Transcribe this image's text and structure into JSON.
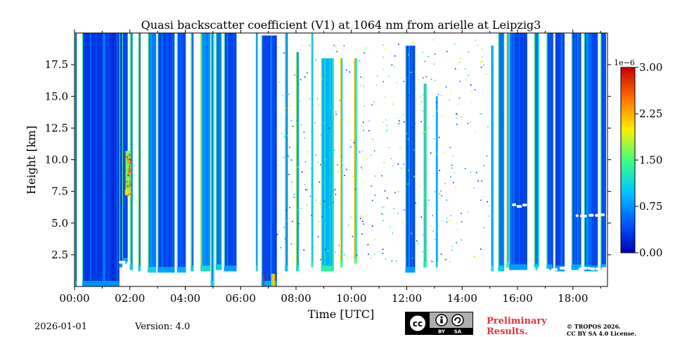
{
  "chart_data": {
    "type": "heatmap",
    "title": "Quasi backscatter coefficient (V1) at 1064 nm from arielle at Leipzig3",
    "xlabel": "Time [UTC]",
    "ylabel": "Height [km]",
    "xlim_hours": [
      0,
      19.25
    ],
    "ylim_km": [
      0,
      20
    ],
    "x_ticks": [
      {
        "value": 0,
        "label": "00:00"
      },
      {
        "value": 2,
        "label": "02:00"
      },
      {
        "value": 4,
        "label": "04:00"
      },
      {
        "value": 6,
        "label": "06:00"
      },
      {
        "value": 8,
        "label": "08:00"
      },
      {
        "value": 10,
        "label": "10:00"
      },
      {
        "value": 12,
        "label": "12:00"
      },
      {
        "value": 14,
        "label": "14:00"
      },
      {
        "value": 16,
        "label": "16:00"
      },
      {
        "value": 18,
        "label": "18:00"
      }
    ],
    "y_ticks": [
      {
        "value": 2.5,
        "label": "2.5"
      },
      {
        "value": 5.0,
        "label": "5.0"
      },
      {
        "value": 7.5,
        "label": "7.5"
      },
      {
        "value": 10.0,
        "label": "10.0"
      },
      {
        "value": 12.5,
        "label": "12.5"
      },
      {
        "value": 15.0,
        "label": "15.0"
      },
      {
        "value": 17.5,
        "label": "17.5"
      }
    ],
    "colorbar": {
      "min": 0,
      "max": 3.0,
      "scale_label": "1e−6",
      "ticks": [
        {
          "value": 0,
          "label": "0.00"
        },
        {
          "value": 0.75,
          "label": "0.75"
        },
        {
          "value": 1.5,
          "label": "1.50"
        },
        {
          "value": 2.25,
          "label": "2.25"
        },
        {
          "value": 3.0,
          "label": "3.00"
        }
      ],
      "colormap": [
        "#0000b8",
        "#005cff",
        "#00c8ff",
        "#40ff80",
        "#ffee00",
        "#ff7000",
        "#c80000"
      ]
    },
    "data_bands": [
      {
        "t0": 0.0,
        "t1": 0.08,
        "top": 20,
        "base": 0.0,
        "intensity": 0.15
      },
      {
        "t0": 0.28,
        "t1": 1.62,
        "top": 20,
        "base": 0.0,
        "intensity": 0.1
      },
      {
        "t0": 1.62,
        "t1": 1.72,
        "top": 20,
        "base": 1.5,
        "intensity": 0.1
      },
      {
        "t0": 1.72,
        "t1": 1.92,
        "top": 20,
        "base": 1.8,
        "intensity": 0.12
      },
      {
        "t0": 1.82,
        "t1": 2.02,
        "top": 10.7,
        "base": 7.2,
        "intensity": 0.55
      },
      {
        "t0": 2.0,
        "t1": 2.1,
        "top": 20,
        "base": 1.3,
        "intensity": 0.18
      },
      {
        "t0": 2.3,
        "t1": 2.38,
        "top": 20,
        "base": 1.2,
        "intensity": 0.2
      },
      {
        "t0": 2.65,
        "t1": 2.95,
        "top": 20,
        "base": 1.1,
        "intensity": 0.22
      },
      {
        "t0": 3.0,
        "t1": 3.6,
        "top": 20,
        "base": 1.1,
        "intensity": 0.12
      },
      {
        "t0": 3.7,
        "t1": 4.0,
        "top": 20,
        "base": 1.1,
        "intensity": 0.15
      },
      {
        "t0": 4.2,
        "t1": 4.3,
        "top": 20,
        "base": 1.2,
        "intensity": 0.2
      },
      {
        "t0": 4.55,
        "t1": 4.9,
        "top": 20,
        "base": 1.2,
        "intensity": 0.25
      },
      {
        "t0": 4.92,
        "t1": 5.0,
        "top": 20,
        "base": 0.0,
        "intensity": 0.2
      },
      {
        "t0": 5.1,
        "t1": 5.3,
        "top": 20,
        "base": 1.3,
        "intensity": 0.2
      },
      {
        "t0": 5.4,
        "t1": 5.85,
        "top": 20,
        "base": 1.2,
        "intensity": 0.12
      },
      {
        "t0": 6.55,
        "t1": 6.62,
        "top": 20,
        "base": 1.2,
        "intensity": 0.25
      },
      {
        "t0": 6.75,
        "t1": 7.3,
        "top": 19.8,
        "base": 0.0,
        "intensity": 0.13
      },
      {
        "t0": 7.6,
        "t1": 7.7,
        "top": 20,
        "base": 1.2,
        "intensity": 0.2
      },
      {
        "t0": 8.0,
        "t1": 8.1,
        "top": 18.5,
        "base": 1.2,
        "intensity": 0.25
      },
      {
        "t0": 8.55,
        "t1": 8.62,
        "top": 20,
        "base": 1.5,
        "intensity": 0.3
      },
      {
        "t0": 8.9,
        "t1": 9.35,
        "top": 18,
        "base": 1.2,
        "intensity": 0.3
      },
      {
        "t0": 9.6,
        "t1": 9.68,
        "top": 18,
        "base": 1.5,
        "intensity": 0.35
      },
      {
        "t0": 10.1,
        "t1": 10.18,
        "top": 18,
        "base": 1.8,
        "intensity": 0.4
      },
      {
        "t0": 11.95,
        "t1": 12.3,
        "top": 19,
        "base": 1.1,
        "intensity": 0.12
      },
      {
        "t0": 12.6,
        "t1": 12.7,
        "top": 16,
        "base": 1.5,
        "intensity": 0.3
      },
      {
        "t0": 13.05,
        "t1": 13.12,
        "top": 15,
        "base": 1.5,
        "intensity": 0.25
      },
      {
        "t0": 15.05,
        "t1": 15.12,
        "top": 19,
        "base": 1.2,
        "intensity": 0.25
      },
      {
        "t0": 15.3,
        "t1": 15.5,
        "top": 20,
        "base": 1.2,
        "intensity": 0.2
      },
      {
        "t0": 15.6,
        "t1": 15.68,
        "top": 20,
        "base": 1.5,
        "intensity": 0.3
      },
      {
        "t0": 15.7,
        "t1": 16.35,
        "top": 20,
        "base": 1.3,
        "intensity": 0.12
      },
      {
        "t0": 16.6,
        "t1": 16.75,
        "top": 20,
        "base": 1.3,
        "intensity": 0.2
      },
      {
        "t0": 17.05,
        "t1": 17.25,
        "top": 20,
        "base": 1.3,
        "intensity": 0.15
      },
      {
        "t0": 17.35,
        "t1": 17.7,
        "top": 20,
        "base": 1.2,
        "intensity": 0.12
      },
      {
        "t0": 17.95,
        "t1": 18.3,
        "top": 20,
        "base": 1.3,
        "intensity": 0.14
      },
      {
        "t0": 18.4,
        "t1": 18.9,
        "top": 20,
        "base": 1.2,
        "intensity": 0.13
      },
      {
        "t0": 19.0,
        "t1": 19.2,
        "top": 20,
        "base": 1.3,
        "intensity": 0.15
      }
    ],
    "cloud_base_marks": [
      {
        "t0": 1.6,
        "t1": 2.0,
        "height": 1.8
      },
      {
        "t0": 15.8,
        "t1": 16.6,
        "height": 6.3
      },
      {
        "t0": 16.5,
        "t1": 17.6,
        "height": 1.3
      },
      {
        "t0": 18.1,
        "t1": 19.2,
        "height": 5.5
      },
      {
        "t0": 18.2,
        "t1": 19.2,
        "height": 1.3
      }
    ],
    "scatter_region": {
      "t0": 7.3,
      "t1": 15.0,
      "hmin": 2.0,
      "hmax": 19.5
    }
  },
  "footer": {
    "date": "2026-01-01",
    "version": "Version: 4.0",
    "preliminary_line1": "Preliminary",
    "preliminary_line2": "Results.",
    "copyright_line1": "© TROPOS 2026.",
    "copyright_line2": "CC BY SA 4.0 License.",
    "cc_by": "BY",
    "cc_sa": "SA"
  }
}
